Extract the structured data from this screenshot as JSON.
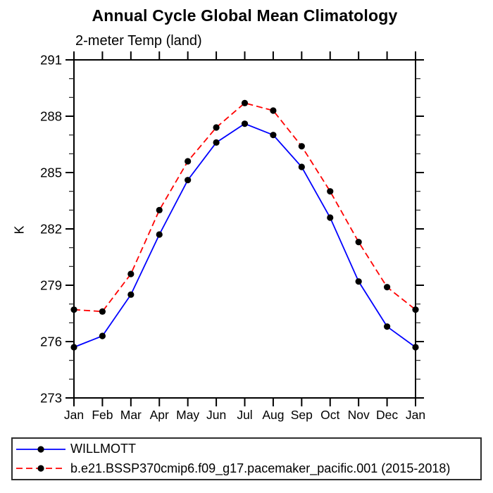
{
  "header": {
    "title": "Annual Cycle Global Mean Climatology",
    "subtitle": "2-meter Temp (land)"
  },
  "chart_data": {
    "type": "line",
    "title": "Annual Cycle Global Mean Climatology",
    "subtitle": "2-meter Temp (land)",
    "xlabel": "",
    "ylabel": "K",
    "ylim": [
      273,
      291
    ],
    "y_major_ticks": [
      273,
      276,
      279,
      282,
      285,
      288,
      291
    ],
    "y_minor_step": 1,
    "grid": false,
    "legend_position": "bottom-left-box",
    "marker": "filled-circle",
    "marker_color": "#000000",
    "categories": [
      "Jan",
      "Feb",
      "Mar",
      "Apr",
      "May",
      "Jun",
      "Jul",
      "Aug",
      "Sep",
      "Oct",
      "Nov",
      "Dec",
      "Jan"
    ],
    "series": [
      {
        "name": "WILLMOTT",
        "color": "#0000ff",
        "style": "solid",
        "dash": "",
        "values": [
          275.7,
          276.3,
          278.5,
          281.7,
          284.6,
          286.6,
          287.6,
          287.0,
          285.3,
          282.6,
          279.2,
          276.8,
          275.7
        ]
      },
      {
        "name": "b.e21.BSSP370cmip6.f09_g17.pacemaker_pacific.001 (2015-2018)",
        "color": "#ff0000",
        "style": "dashed",
        "dash": "9,5",
        "values": [
          277.7,
          277.6,
          279.6,
          283.0,
          285.6,
          287.4,
          288.7,
          288.3,
          286.4,
          284.0,
          281.3,
          278.9,
          277.7
        ]
      }
    ]
  }
}
